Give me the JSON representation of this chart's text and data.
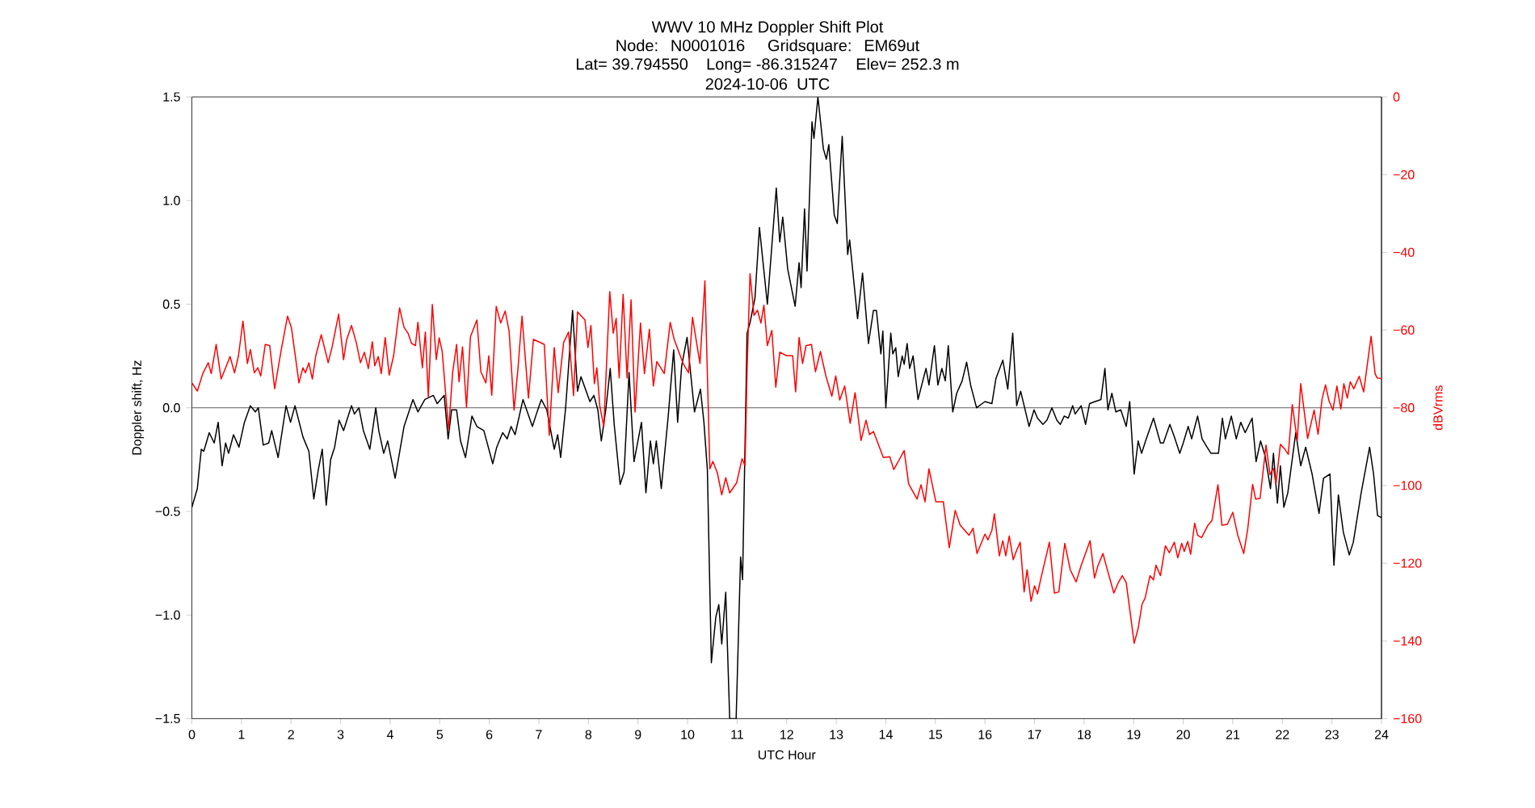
{
  "chart_data": {
    "type": "line",
    "title": "WWV 10 MHz Doppler Shift Plot",
    "subtitle": "Node:  N0001016     Gridsquare:  EM69ut",
    "annotations": [
      "Lat= 39.794550    Long= -86.315247    Elev= 252.3 m",
      "2024-10-06  UTC"
    ],
    "xlabel": "UTC Hour",
    "ylabel": "Doppler shift, Hz",
    "y2label": "dBVrms",
    "xlim": [
      0,
      24
    ],
    "xticks": [
      0,
      1,
      2,
      3,
      4,
      5,
      6,
      7,
      8,
      9,
      10,
      11,
      12,
      13,
      14,
      15,
      16,
      17,
      18,
      19,
      20,
      21,
      22,
      23,
      24
    ],
    "ylim": [
      -1.5,
      1.5
    ],
    "yticks": [
      {
        "value": -1.5,
        "label": "−1.5"
      },
      {
        "value": -1.0,
        "label": "−1.0"
      },
      {
        "value": -0.5,
        "label": "−0.5"
      },
      {
        "value": 0.0,
        "label": "0.0"
      },
      {
        "value": 0.5,
        "label": "0.5"
      },
      {
        "value": 1.0,
        "label": "1.0"
      },
      {
        "value": 1.5,
        "label": "1.5"
      }
    ],
    "y2lim": [
      -160,
      0
    ],
    "y2ticks": [
      {
        "value": 0,
        "label": "0"
      },
      {
        "value": -20,
        "label": "−20"
      },
      {
        "value": -40,
        "label": "−40"
      },
      {
        "value": -60,
        "label": "−60"
      },
      {
        "value": -80,
        "label": "−80"
      },
      {
        "value": -100,
        "label": "−100"
      },
      {
        "value": -120,
        "label": "−120"
      },
      {
        "value": -140,
        "label": "−140"
      },
      {
        "value": -160,
        "label": "−160"
      }
    ],
    "ref_lines": [
      {
        "axis": "y",
        "value": 0,
        "color": "#808080"
      }
    ],
    "series": [
      {
        "color": "#000000",
        "axis": "y",
        "x": [
          0,
          0.11,
          0.19,
          0.24,
          0.35,
          0.45,
          0.53,
          0.61,
          0.68,
          0.74,
          0.84,
          0.95,
          1.06,
          1.18,
          1.28,
          1.34,
          1.44,
          1.55,
          1.61,
          1.74,
          1.9,
          1.99,
          2.08,
          2.24,
          2.36,
          2.46,
          2.55,
          2.63,
          2.71,
          2.8,
          2.88,
          2.97,
          3.06,
          3.22,
          3.28,
          3.37,
          3.46,
          3.59,
          3.71,
          3.77,
          3.87,
          3.95,
          4.1,
          4.28,
          4.46,
          4.56,
          4.7,
          4.87,
          4.95,
          5.09,
          5.17,
          5.24,
          5.34,
          5.42,
          5.52,
          5.65,
          5.75,
          5.89,
          6.07,
          6.15,
          6.27,
          6.36,
          6.44,
          6.52,
          6.68,
          6.87,
          6.95,
          7.05,
          7.16,
          7.31,
          7.38,
          7.44,
          7.54,
          7.68,
          7.78,
          7.85,
          8.03,
          8.11,
          8.19,
          8.26,
          8.35,
          8.44,
          8.52,
          8.64,
          8.72,
          8.82,
          8.92,
          9.07,
          9.16,
          9.25,
          9.31,
          9.37,
          9.47,
          9.61,
          9.72,
          9.8,
          9.88,
          9.99,
          10.14,
          10.26,
          10.33,
          10.4,
          10.48,
          10.57,
          10.63,
          10.69,
          10.77,
          10.85,
          10.98,
          11.07,
          11.11,
          11.2,
          11.26,
          11.36,
          11.45,
          11.61,
          11.79,
          11.86,
          11.92,
          12.02,
          12.17,
          12.25,
          12.29,
          12.36,
          12.41,
          12.51,
          12.55,
          12.63,
          12.74,
          12.8,
          12.85,
          12.96,
          13.02,
          13.12,
          13.23,
          13.27,
          13.43,
          13.53,
          13.65,
          13.75,
          13.81,
          13.9,
          13.94,
          14.0,
          14.1,
          14.14,
          14.2,
          14.25,
          14.33,
          14.37,
          14.43,
          14.48,
          14.55,
          14.65,
          14.81,
          14.87,
          14.98,
          15.05,
          15.13,
          15.2,
          15.26,
          15.35,
          15.43,
          15.54,
          15.63,
          15.71,
          15.83,
          16.0,
          16.14,
          16.22,
          16.36,
          16.46,
          16.56,
          16.64,
          16.72,
          16.89,
          16.99,
          17.06,
          17.17,
          17.25,
          17.35,
          17.45,
          17.52,
          17.6,
          17.68,
          17.77,
          17.82,
          17.94,
          18.03,
          18.11,
          18.22,
          18.34,
          18.42,
          18.48,
          18.56,
          18.64,
          18.74,
          18.85,
          18.92,
          19.01,
          19.09,
          19.16,
          19.24,
          19.4,
          19.54,
          19.6,
          19.73,
          19.82,
          19.93,
          20.0,
          20.1,
          20.17,
          20.29,
          20.38,
          20.48,
          20.56,
          20.71,
          20.79,
          20.85,
          20.97,
          21.07,
          21.16,
          21.25,
          21.39,
          21.47,
          21.56,
          21.65,
          21.76,
          21.82,
          21.9,
          21.96,
          22.03,
          22.11,
          22.27,
          22.37,
          22.47,
          22.6,
          22.74,
          22.83,
          22.96,
          23.04,
          23.13,
          23.23,
          23.35,
          23.43,
          23.59,
          23.76,
          23.84,
          23.92,
          24
        ],
        "values": [
          -0.48,
          -0.39,
          -0.2,
          -0.21,
          -0.12,
          -0.17,
          -0.07,
          -0.28,
          -0.17,
          -0.22,
          -0.13,
          -0.19,
          -0.07,
          0.01,
          -0.02,
          0.0,
          -0.18,
          -0.17,
          -0.11,
          -0.24,
          0.01,
          -0.07,
          0.01,
          -0.14,
          -0.21,
          -0.44,
          -0.3,
          -0.2,
          -0.47,
          -0.25,
          -0.19,
          -0.06,
          -0.11,
          0.01,
          -0.03,
          0.0,
          -0.11,
          -0.2,
          0.0,
          -0.11,
          -0.22,
          -0.16,
          -0.34,
          -0.09,
          0.04,
          -0.02,
          0.04,
          0.06,
          0.02,
          0.06,
          -0.15,
          -0.01,
          -0.01,
          -0.16,
          -0.24,
          -0.04,
          -0.09,
          -0.11,
          -0.27,
          -0.19,
          -0.12,
          -0.15,
          -0.09,
          -0.13,
          0.04,
          -0.09,
          -0.03,
          0.04,
          -0.01,
          -0.2,
          -0.13,
          -0.24,
          0.0,
          0.47,
          0.08,
          0.15,
          0.03,
          0.06,
          -0.01,
          -0.16,
          -0.01,
          0.19,
          -0.08,
          -0.37,
          -0.31,
          0.17,
          -0.26,
          -0.07,
          -0.41,
          -0.16,
          -0.27,
          -0.16,
          -0.39,
          -0.04,
          0.28,
          -0.07,
          0.2,
          0.34,
          -0.02,
          0.09,
          -0.07,
          -0.3,
          -1.23,
          -1.01,
          -0.95,
          -1.14,
          -0.89,
          -1.5,
          -1.5,
          -0.72,
          -0.83,
          0.36,
          0.41,
          0.53,
          0.87,
          0.5,
          1.06,
          0.8,
          0.92,
          0.67,
          0.49,
          0.7,
          0.58,
          0.96,
          0.66,
          1.38,
          1.3,
          1.5,
          1.25,
          1.2,
          1.27,
          0.93,
          0.89,
          1.31,
          0.74,
          0.81,
          0.43,
          0.65,
          0.31,
          0.47,
          0.47,
          0.26,
          0.37,
          0.0,
          0.36,
          0.26,
          0.29,
          0.15,
          0.25,
          0.21,
          0.31,
          0.19,
          0.25,
          0.04,
          0.19,
          0.11,
          0.3,
          0.11,
          0.19,
          0.13,
          0.3,
          -0.02,
          0.07,
          0.13,
          0.22,
          0.11,
          0.0,
          0.03,
          0.02,
          0.14,
          0.23,
          0.09,
          0.36,
          0.01,
          0.08,
          -0.09,
          -0.01,
          -0.05,
          -0.08,
          -0.06,
          0.0,
          -0.06,
          -0.08,
          -0.04,
          -0.05,
          0.01,
          -0.03,
          0.01,
          -0.08,
          0.02,
          0.03,
          0.04,
          0.19,
          -0.01,
          0.07,
          -0.02,
          -0.01,
          -0.09,
          0.03,
          -0.32,
          -0.16,
          -0.22,
          -0.16,
          -0.05,
          -0.17,
          -0.17,
          -0.08,
          -0.14,
          -0.22,
          -0.17,
          -0.09,
          -0.15,
          -0.04,
          -0.15,
          -0.19,
          -0.22,
          -0.22,
          -0.05,
          -0.15,
          -0.04,
          -0.15,
          -0.07,
          -0.12,
          -0.05,
          -0.26,
          -0.16,
          -0.23,
          -0.39,
          -0.22,
          -0.46,
          -0.28,
          -0.48,
          -0.41,
          -0.12,
          -0.28,
          -0.19,
          -0.32,
          -0.51,
          -0.34,
          -0.32,
          -0.76,
          -0.42,
          -0.6,
          -0.71,
          -0.65,
          -0.41,
          -0.19,
          -0.32,
          -0.52,
          -0.53
        ]
      },
      {
        "color": "#ff0000",
        "axis": "y2",
        "x": [
          0,
          0.11,
          0.22,
          0.33,
          0.39,
          0.49,
          0.59,
          0.68,
          0.77,
          0.86,
          0.94,
          1.03,
          1.12,
          1.18,
          1.26,
          1.33,
          1.39,
          1.48,
          1.57,
          1.67,
          1.8,
          1.93,
          2.01,
          2.16,
          2.24,
          2.29,
          2.36,
          2.43,
          2.5,
          2.61,
          2.75,
          2.83,
          2.96,
          3.06,
          3.12,
          3.22,
          3.32,
          3.4,
          3.48,
          3.56,
          3.64,
          3.69,
          3.76,
          3.82,
          3.9,
          3.98,
          4.07,
          4.19,
          4.28,
          4.36,
          4.43,
          4.51,
          4.56,
          4.65,
          4.71,
          4.77,
          4.85,
          4.93,
          4.99,
          5.05,
          5.18,
          5.26,
          5.34,
          5.39,
          5.46,
          5.54,
          5.62,
          5.75,
          5.83,
          5.93,
          5.99,
          6.05,
          6.14,
          6.23,
          6.32,
          6.4,
          6.5,
          6.58,
          6.66,
          6.79,
          6.89,
          7.11,
          7.21,
          7.31,
          7.39,
          7.5,
          7.6,
          7.7,
          7.78,
          7.93,
          7.99,
          8.05,
          8.12,
          8.17,
          8.23,
          8.31,
          8.43,
          8.5,
          8.56,
          8.62,
          8.7,
          8.78,
          8.86,
          8.94,
          9.05,
          9.13,
          9.23,
          9.31,
          9.38,
          9.53,
          9.65,
          9.73,
          9.91,
          10.02,
          10.1,
          10.25,
          10.35,
          10.45,
          10.51,
          10.6,
          10.69,
          10.77,
          10.85,
          10.99,
          11.1,
          11.16,
          11.2,
          11.26,
          11.34,
          11.41,
          11.48,
          11.54,
          11.61,
          11.7,
          11.78,
          11.86,
          12.0,
          12.12,
          12.18,
          12.25,
          12.32,
          12.39,
          12.5,
          12.58,
          12.68,
          12.79,
          12.91,
          12.99,
          13.07,
          13.17,
          13.28,
          13.38,
          13.5,
          13.6,
          13.67,
          13.75,
          13.95,
          14.08,
          14.16,
          14.24,
          14.37,
          14.46,
          14.63,
          14.71,
          14.79,
          14.87,
          15.01,
          15.16,
          15.28,
          15.4,
          15.5,
          15.68,
          15.76,
          15.84,
          16.0,
          16.06,
          16.14,
          16.19,
          16.29,
          16.36,
          16.42,
          16.49,
          16.57,
          16.63,
          16.71,
          16.79,
          16.85,
          16.93,
          17.0,
          17.06,
          17.13,
          17.3,
          17.4,
          17.49,
          17.61,
          17.72,
          17.84,
          17.94,
          18.12,
          18.21,
          18.28,
          18.38,
          18.48,
          18.6,
          18.69,
          18.77,
          18.85,
          19.01,
          19.09,
          19.17,
          19.23,
          19.33,
          19.4,
          19.45,
          19.54,
          19.64,
          19.72,
          19.82,
          19.89,
          19.97,
          20.02,
          20.09,
          20.15,
          20.23,
          20.29,
          20.37,
          20.5,
          20.58,
          20.7,
          20.78,
          20.89,
          21.0,
          21.1,
          21.22,
          21.3,
          21.4,
          21.46,
          21.55,
          21.67,
          21.75,
          21.82,
          21.87,
          21.96,
          22.04,
          22.12,
          22.2,
          22.3,
          22.37,
          22.51,
          22.64,
          22.72,
          22.8,
          22.87,
          22.94,
          23.02,
          23.1,
          23.18,
          23.24,
          23.31,
          23.37,
          23.44,
          23.55,
          23.64,
          23.79,
          23.87,
          23.91,
          24
        ],
        "values": [
          -73.6,
          -75.7,
          -71.2,
          -68.4,
          -71.2,
          -63.7,
          -72.6,
          -69.7,
          -66.8,
          -71.0,
          -66.6,
          -57.7,
          -68.6,
          -65.0,
          -71.0,
          -69.7,
          -71.8,
          -63.7,
          -64.0,
          -75.1,
          -65.3,
          -56.4,
          -59.5,
          -73.6,
          -69.7,
          -71.0,
          -68.4,
          -72.6,
          -66.6,
          -61.2,
          -68.4,
          -64.3,
          -55.9,
          -67.6,
          -62.6,
          -58.8,
          -63.4,
          -68.4,
          -65.7,
          -69.9,
          -63.0,
          -69.2,
          -66.8,
          -71.2,
          -61.9,
          -71.6,
          -66.6,
          -54.3,
          -59.3,
          -60.8,
          -63.4,
          -64.0,
          -58.0,
          -69.7,
          -60.5,
          -77.2,
          -53.4,
          -67.6,
          -62.0,
          -65.5,
          -85.8,
          -71.0,
          -63.7,
          -73.3,
          -64.3,
          -79.9,
          -61.7,
          -57.4,
          -70.7,
          -73.6,
          -66.6,
          -76.8,
          -53.9,
          -58.2,
          -55.1,
          -60.3,
          -80.6,
          -69.7,
          -56.4,
          -77.5,
          -62.4,
          -63.7,
          -87.1,
          -64.5,
          -76.1,
          -63.2,
          -60.5,
          -76.9,
          -55.3,
          -57.4,
          -64.5,
          -58.8,
          -73.8,
          -69.7,
          -79.6,
          -84.8,
          -50.1,
          -60.8,
          -57.0,
          -72.3,
          -50.8,
          -72.3,
          -52.2,
          -81.1,
          -58.2,
          -71.2,
          -59.8,
          -74.4,
          -68.1,
          -71.2,
          -58.0,
          -62.4,
          -68.6,
          -71.0,
          -56.7,
          -68.6,
          -47.3,
          -95.7,
          -93.8,
          -96.7,
          -102.4,
          -98.0,
          -101.9,
          -99.3,
          -93.1,
          -94.9,
          -70.7,
          -45.5,
          -56.2,
          -54.9,
          -58.2,
          -53.6,
          -64.0,
          -60.1,
          -74.7,
          -65.7,
          -66.6,
          -66.6,
          -75.9,
          -61.9,
          -68.6,
          -64.0,
          -63.7,
          -70.7,
          -65.5,
          -71.8,
          -77.0,
          -71.8,
          -78.0,
          -74.4,
          -84.0,
          -76.1,
          -88.4,
          -83.2,
          -86.9,
          -86.1,
          -92.8,
          -92.6,
          -95.9,
          -94.1,
          -91.0,
          -99.6,
          -103.5,
          -99.8,
          -104.2,
          -95.7,
          -104.2,
          -104.2,
          -116.0,
          -106.4,
          -110.2,
          -112.8,
          -111.0,
          -117.5,
          -112.5,
          -114.0,
          -111.5,
          -107.3,
          -118.1,
          -114.2,
          -118.1,
          -113.0,
          -119.1,
          -117.0,
          -114.6,
          -127.4,
          -121.7,
          -129.8,
          -125.8,
          -127.9,
          -123.8,
          -114.6,
          -127.7,
          -127.4,
          -114.9,
          -121.7,
          -124.8,
          -120.6,
          -114.2,
          -123.8,
          -120.6,
          -117.5,
          -122.2,
          -127.7,
          -125.0,
          -123.2,
          -125.0,
          -140.6,
          -136.8,
          -130.5,
          -129.0,
          -123.2,
          -124.3,
          -120.5,
          -123.2,
          -115.5,
          -117.3,
          -114.6,
          -118.6,
          -114.9,
          -117.0,
          -114.4,
          -117.7,
          -109.7,
          -112.8,
          -113.4,
          -110.2,
          -109.0,
          -99.8,
          -110.2,
          -110.0,
          -106.9,
          -112.8,
          -117.5,
          -111.3,
          -99.7,
          -103.5,
          -103.3,
          -89.6,
          -97.2,
          -95.6,
          -99.6,
          -89.4,
          -90.5,
          -92.0,
          -79.2,
          -88.4,
          -73.8,
          -87.9,
          -80.6,
          -86.8,
          -77.8,
          -74.1,
          -78.2,
          -80.6,
          -74.4,
          -80.3,
          -73.8,
          -77.5,
          -73.3,
          -75.1,
          -71.9,
          -75.9,
          -61.6,
          -71.2,
          -72.3,
          -72.5
        ]
      }
    ]
  }
}
